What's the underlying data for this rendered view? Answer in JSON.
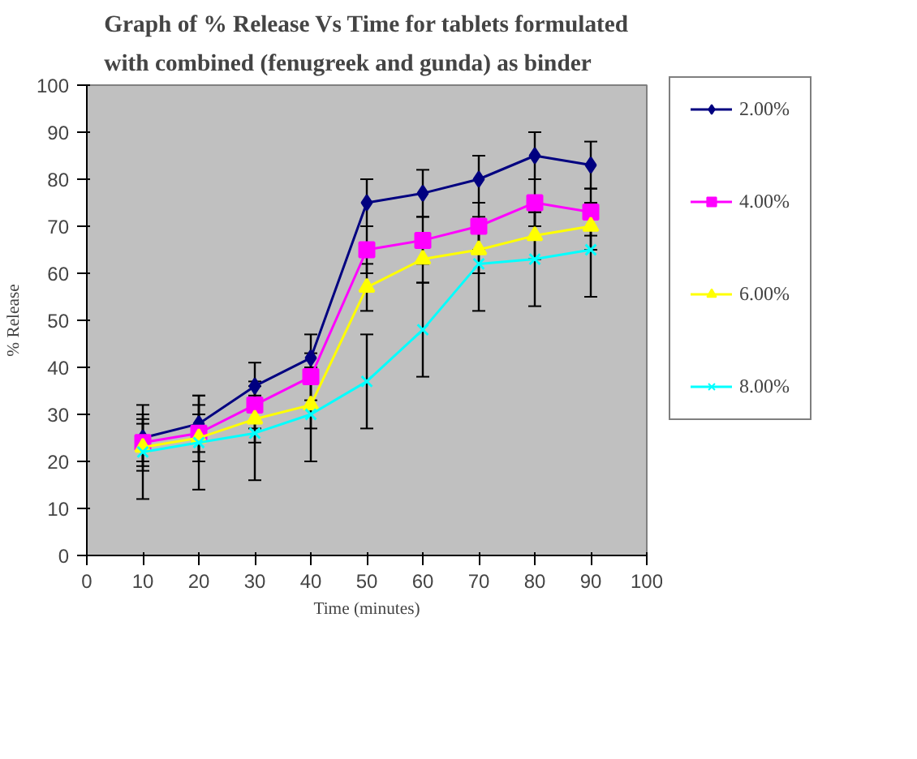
{
  "chart_data": {
    "type": "line",
    "title": "Graph of % Release Vs Time for tablets formulated with combined (fenugreek and gunda)  as  binder",
    "xlabel": "Time (minutes)",
    "ylabel": "% Release",
    "x": [
      10,
      20,
      30,
      40,
      50,
      60,
      70,
      80,
      90
    ],
    "xlim": [
      0,
      100
    ],
    "xticks": [
      0,
      10,
      20,
      30,
      40,
      50,
      60,
      70,
      80,
      90,
      100
    ],
    "ylim": [
      0,
      100
    ],
    "yticks": [
      0,
      10,
      20,
      30,
      40,
      50,
      60,
      70,
      80,
      90,
      100
    ],
    "legend": "right",
    "series": [
      {
        "name": "2.00%",
        "color": "#000080",
        "marker": "diamond",
        "values": [
          25,
          28,
          36,
          42,
          75,
          77,
          80,
          85,
          83
        ],
        "errors": [
          5,
          6,
          5,
          5,
          5,
          5,
          5,
          5,
          5
        ]
      },
      {
        "name": "4.00%",
        "color": "#ff00ff",
        "marker": "square",
        "values": [
          24,
          26,
          32,
          38,
          65,
          67,
          70,
          75,
          73
        ],
        "errors": [
          5,
          6,
          5,
          5,
          5,
          5,
          5,
          5,
          5
        ]
      },
      {
        "name": "6.00%",
        "color": "#ffff00",
        "marker": "triangle",
        "values": [
          23,
          25,
          29,
          32,
          57,
          63,
          65,
          68,
          70
        ],
        "errors": [
          5,
          5,
          5,
          5,
          5,
          5,
          5,
          5,
          5
        ]
      },
      {
        "name": "8.00%",
        "color": "#00ffff",
        "marker": "cross",
        "values": [
          22,
          24,
          26,
          30,
          37,
          48,
          62,
          63,
          65
        ],
        "errors": [
          10,
          10,
          10,
          10,
          10,
          10,
          10,
          10,
          10
        ]
      }
    ]
  }
}
